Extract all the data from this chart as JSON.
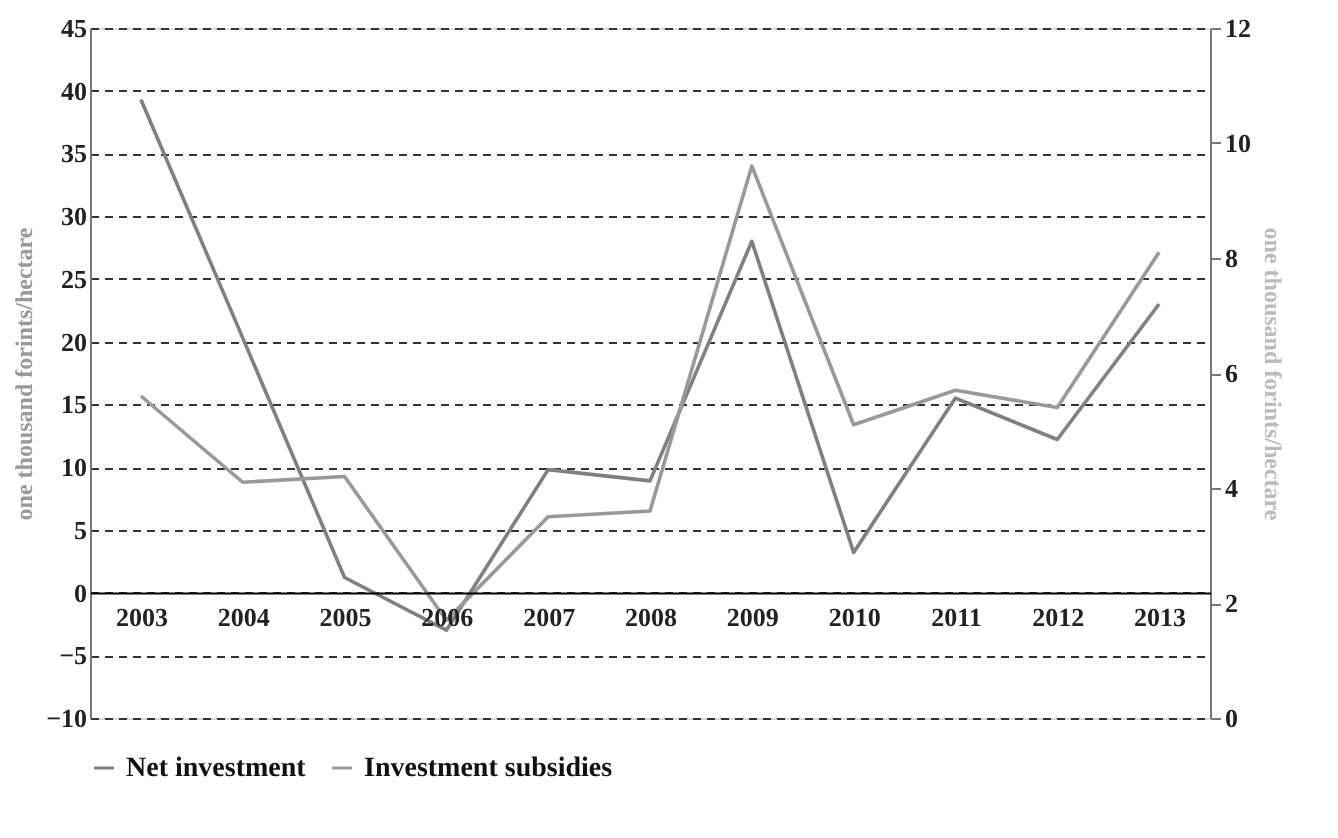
{
  "chart_data": {
    "type": "line",
    "categories": [
      "2003",
      "2004",
      "2005",
      "2006",
      "2007",
      "2008",
      "2009",
      "2010",
      "2011",
      "2012",
      "2013"
    ],
    "series": [
      {
        "name": "Net investment",
        "color": "#808080",
        "values": [
          39.3,
          20.3,
          1.2,
          -3,
          9.8,
          8.9,
          28,
          3.2,
          15.5,
          12.2,
          23
        ]
      },
      {
        "name": "Investment subsidies",
        "color": "#999999",
        "axis": "y2",
        "values": [
          5.6,
          4.1,
          4.2,
          1.7,
          3.5,
          3.6,
          9.6,
          5.1,
          5.7,
          5.4,
          8.1
        ]
      }
    ],
    "ylabel": "one thousand forints/hectare",
    "y2label": "one thousand forints/hectare",
    "ylim": [
      -10,
      45
    ],
    "yticks": [
      -10,
      -5,
      0,
      5,
      10,
      15,
      20,
      25,
      30,
      35,
      40,
      45
    ],
    "y2lim": [
      0,
      12
    ],
    "y2ticks": [
      0,
      2,
      4,
      6,
      8,
      10,
      12
    ],
    "grid": "y",
    "legend": "bottom",
    "marker": "none",
    "line_style": "solid"
  }
}
